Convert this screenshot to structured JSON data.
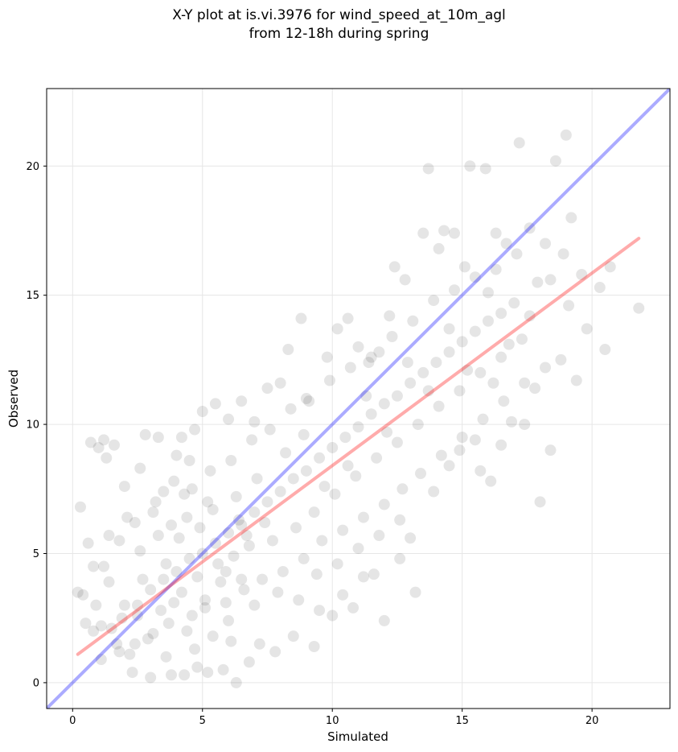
{
  "chart_data": {
    "type": "scatter",
    "title_line1": "X-Y plot at is.vi.3976 for wind_speed_at_10m_agl",
    "title_line2": "from 12-18h during spring",
    "xlabel": "Simulated",
    "ylabel": "Observed",
    "xlim": [
      -1,
      23
    ],
    "ylim": [
      -1,
      23
    ],
    "xticks": [
      0,
      5,
      10,
      15,
      20
    ],
    "yticks": [
      0,
      5,
      10,
      15,
      20
    ],
    "grid": true,
    "colors": {
      "points": "#000000",
      "one_to_one_line": "#0000ff",
      "fit_line": "#ff0000"
    },
    "one_to_one_line": {
      "x": [
        -1,
        23
      ],
      "y": [
        -1,
        23
      ]
    },
    "fit_line": {
      "x": [
        0.2,
        21.8
      ],
      "y": [
        1.1,
        17.2
      ]
    },
    "points": [
      [
        0.2,
        3.5
      ],
      [
        0.3,
        6.8
      ],
      [
        0.4,
        3.4
      ],
      [
        0.5,
        2.3
      ],
      [
        0.6,
        5.4
      ],
      [
        0.7,
        9.3
      ],
      [
        0.8,
        4.5
      ],
      [
        1.0,
        9.1
      ],
      [
        1.1,
        2.2
      ],
      [
        1.2,
        9.4
      ],
      [
        1.3,
        8.7
      ],
      [
        1.4,
        5.7
      ],
      [
        1.6,
        9.2
      ],
      [
        1.8,
        1.2
      ],
      [
        2.0,
        7.6
      ],
      [
        2.1,
        6.4
      ],
      [
        2.3,
        0.4
      ],
      [
        2.5,
        3.0
      ],
      [
        2.6,
        8.3
      ],
      [
        2.8,
        9.6
      ],
      [
        3.0,
        0.2
      ],
      [
        3.1,
        6.6
      ],
      [
        3.3,
        9.5
      ],
      [
        3.5,
        7.4
      ],
      [
        3.6,
        1.0
      ],
      [
        3.8,
        0.3
      ],
      [
        4.0,
        8.8
      ],
      [
        4.2,
        9.5
      ],
      [
        4.3,
        0.3
      ],
      [
        4.5,
        8.6
      ],
      [
        4.7,
        9.8
      ],
      [
        4.8,
        0.6
      ],
      [
        5.0,
        10.5
      ],
      [
        5.2,
        0.4
      ],
      [
        5.5,
        10.8
      ],
      [
        5.8,
        0.5
      ],
      [
        6.0,
        10.2
      ],
      [
        6.3,
        0.0
      ],
      [
        6.5,
        10.9
      ],
      [
        6.8,
        0.8
      ],
      [
        7.0,
        10.1
      ],
      [
        7.2,
        1.5
      ],
      [
        7.5,
        11.4
      ],
      [
        7.8,
        1.2
      ],
      [
        8.0,
        11.6
      ],
      [
        8.3,
        12.9
      ],
      [
        8.5,
        1.8
      ],
      [
        8.8,
        14.1
      ],
      [
        9.0,
        11.0
      ],
      [
        9.3,
        1.4
      ],
      [
        9.5,
        2.8
      ],
      [
        9.8,
        12.6
      ],
      [
        10.0,
        2.6
      ],
      [
        10.2,
        13.7
      ],
      [
        10.4,
        3.4
      ],
      [
        10.6,
        14.1
      ],
      [
        10.8,
        2.9
      ],
      [
        11.0,
        13.0
      ],
      [
        11.2,
        4.1
      ],
      [
        11.4,
        12.4
      ],
      [
        11.6,
        4.2
      ],
      [
        11.8,
        12.8
      ],
      [
        12.0,
        2.4
      ],
      [
        12.2,
        14.2
      ],
      [
        12.4,
        16.1
      ],
      [
        12.6,
        4.8
      ],
      [
        12.8,
        15.6
      ],
      [
        13.0,
        5.6
      ],
      [
        13.2,
        3.5
      ],
      [
        13.5,
        17.4
      ],
      [
        13.7,
        19.9
      ],
      [
        13.9,
        7.4
      ],
      [
        14.1,
        16.8
      ],
      [
        14.3,
        17.5
      ],
      [
        14.5,
        8.4
      ],
      [
        14.7,
        17.4
      ],
      [
        14.9,
        9.0
      ],
      [
        15.1,
        16.1
      ],
      [
        15.3,
        20.0
      ],
      [
        15.5,
        9.4
      ],
      [
        15.7,
        8.2
      ],
      [
        15.9,
        19.9
      ],
      [
        16.1,
        7.8
      ],
      [
        16.3,
        17.4
      ],
      [
        16.5,
        9.2
      ],
      [
        16.7,
        17.0
      ],
      [
        16.9,
        10.1
      ],
      [
        17.1,
        16.6
      ],
      [
        17.2,
        20.9
      ],
      [
        17.4,
        10.0
      ],
      [
        17.6,
        17.6
      ],
      [
        17.8,
        11.4
      ],
      [
        18.0,
        7.0
      ],
      [
        18.2,
        17.0
      ],
      [
        18.4,
        9.0
      ],
      [
        18.6,
        20.2
      ],
      [
        18.8,
        12.5
      ],
      [
        19.0,
        21.2
      ],
      [
        19.2,
        18.0
      ],
      [
        19.4,
        11.7
      ],
      [
        19.6,
        15.8
      ],
      [
        20.3,
        15.3
      ],
      [
        20.5,
        12.9
      ],
      [
        20.7,
        16.1
      ],
      [
        21.8,
        14.5
      ],
      [
        1.5,
        2.1
      ],
      [
        2.0,
        3.0
      ],
      [
        2.5,
        2.6
      ],
      [
        3.0,
        3.6
      ],
      [
        3.5,
        4.0
      ],
      [
        4.0,
        4.3
      ],
      [
        4.5,
        4.8
      ],
      [
        5.0,
        5.0
      ],
      [
        5.5,
        5.4
      ],
      [
        6.0,
        5.8
      ],
      [
        6.5,
        6.1
      ],
      [
        7.0,
        6.6
      ],
      [
        7.5,
        7.0
      ],
      [
        8.0,
        7.4
      ],
      [
        8.5,
        7.9
      ],
      [
        9.0,
        8.2
      ],
      [
        9.5,
        8.7
      ],
      [
        10.0,
        9.1
      ],
      [
        10.5,
        9.5
      ],
      [
        11.0,
        9.9
      ],
      [
        11.5,
        10.4
      ],
      [
        12.0,
        10.8
      ],
      [
        12.5,
        11.1
      ],
      [
        13.0,
        11.6
      ],
      [
        13.5,
        12.0
      ],
      [
        14.0,
        12.4
      ],
      [
        14.5,
        12.8
      ],
      [
        15.0,
        13.2
      ],
      [
        15.5,
        13.6
      ],
      [
        16.0,
        14.0
      ],
      [
        16.5,
        14.3
      ],
      [
        17.0,
        14.7
      ],
      [
        1.2,
        4.5
      ],
      [
        1.8,
        5.5
      ],
      [
        2.4,
        6.2
      ],
      [
        3.2,
        7.0
      ],
      [
        3.9,
        7.8
      ],
      [
        4.6,
        7.5
      ],
      [
        5.3,
        8.2
      ],
      [
        6.1,
        8.6
      ],
      [
        6.9,
        9.4
      ],
      [
        7.6,
        9.8
      ],
      [
        8.4,
        10.6
      ],
      [
        9.1,
        10.9
      ],
      [
        9.9,
        11.7
      ],
      [
        10.7,
        12.2
      ],
      [
        11.5,
        12.6
      ],
      [
        12.3,
        13.4
      ],
      [
        13.1,
        14.0
      ],
      [
        13.9,
        14.8
      ],
      [
        14.7,
        15.2
      ],
      [
        15.5,
        15.7
      ],
      [
        16.3,
        16.0
      ],
      [
        2.2,
        1.1
      ],
      [
        2.9,
        1.7
      ],
      [
        3.7,
        2.3
      ],
      [
        4.4,
        2.0
      ],
      [
        5.1,
        2.9
      ],
      [
        5.9,
        3.1
      ],
      [
        6.6,
        3.6
      ],
      [
        7.3,
        4.0
      ],
      [
        8.1,
        4.3
      ],
      [
        8.9,
        4.8
      ],
      [
        9.6,
        5.5
      ],
      [
        10.4,
        5.9
      ],
      [
        11.2,
        6.4
      ],
      [
        12.0,
        6.9
      ],
      [
        12.7,
        7.5
      ],
      [
        13.4,
        8.1
      ],
      [
        14.2,
        8.8
      ],
      [
        15.0,
        9.5
      ],
      [
        15.8,
        10.2
      ],
      [
        16.6,
        10.9
      ],
      [
        17.4,
        11.6
      ],
      [
        18.2,
        12.2
      ],
      [
        4.2,
        3.5
      ],
      [
        4.8,
        4.1
      ],
      [
        5.1,
        3.2
      ],
      [
        5.6,
        4.6
      ],
      [
        6.2,
        4.9
      ],
      [
        6.8,
        5.3
      ],
      [
        3.6,
        4.6
      ],
      [
        4.1,
        5.6
      ],
      [
        4.9,
        6.0
      ],
      [
        5.4,
        6.7
      ],
      [
        6.3,
        7.2
      ],
      [
        7.1,
        7.9
      ],
      [
        2.7,
        4.0
      ],
      [
        3.4,
        2.8
      ],
      [
        4.6,
        2.6
      ],
      [
        5.7,
        3.9
      ],
      [
        6.4,
        6.3
      ],
      [
        7.7,
        5.5
      ],
      [
        8.6,
        6.0
      ],
      [
        9.3,
        6.6
      ],
      [
        10.1,
        7.3
      ],
      [
        10.9,
        8.0
      ],
      [
        11.7,
        8.7
      ],
      [
        12.5,
        9.3
      ],
      [
        13.3,
        10.0
      ],
      [
        14.1,
        10.7
      ],
      [
        14.9,
        11.3
      ],
      [
        15.7,
        12.0
      ],
      [
        16.5,
        12.6
      ],
      [
        17.3,
        13.3
      ],
      [
        0.9,
        3.0
      ],
      [
        1.4,
        3.9
      ],
      [
        1.9,
        2.5
      ],
      [
        2.6,
        5.1
      ],
      [
        3.3,
        5.7
      ],
      [
        3.9,
        3.1
      ],
      [
        4.4,
        6.4
      ],
      [
        5.2,
        7.0
      ],
      [
        5.9,
        4.3
      ],
      [
        6.7,
        5.7
      ],
      [
        7.4,
        6.2
      ],
      [
        8.2,
        8.9
      ],
      [
        8.9,
        9.6
      ],
      [
        9.7,
        7.6
      ],
      [
        10.6,
        8.4
      ],
      [
        11.3,
        11.1
      ],
      [
        12.1,
        9.7
      ],
      [
        12.9,
        12.4
      ],
      [
        13.7,
        11.3
      ],
      [
        14.5,
        13.7
      ],
      [
        15.2,
        12.1
      ],
      [
        16.0,
        15.1
      ],
      [
        16.8,
        13.1
      ],
      [
        17.6,
        14.2
      ],
      [
        18.4,
        15.6
      ],
      [
        19.1,
        14.6
      ],
      [
        19.8,
        13.7
      ],
      [
        18.9,
        16.6
      ],
      [
        17.9,
        15.5
      ],
      [
        16.2,
        11.6
      ],
      [
        6.0,
        2.4
      ],
      [
        6.5,
        4.0
      ],
      [
        7.0,
        3.0
      ],
      [
        7.9,
        3.5
      ],
      [
        8.7,
        3.2
      ],
      [
        9.4,
        4.2
      ],
      [
        10.2,
        4.6
      ],
      [
        11.0,
        5.2
      ],
      [
        11.8,
        5.7
      ],
      [
        12.6,
        6.3
      ],
      [
        4.7,
        1.3
      ],
      [
        5.4,
        1.8
      ],
      [
        6.1,
        1.6
      ],
      [
        3.1,
        1.9
      ],
      [
        2.4,
        1.5
      ],
      [
        1.7,
        1.5
      ],
      [
        1.1,
        0.9
      ],
      [
        0.8,
        2.0
      ],
      [
        4.3,
        7.3
      ],
      [
        3.8,
        6.1
      ]
    ]
  }
}
